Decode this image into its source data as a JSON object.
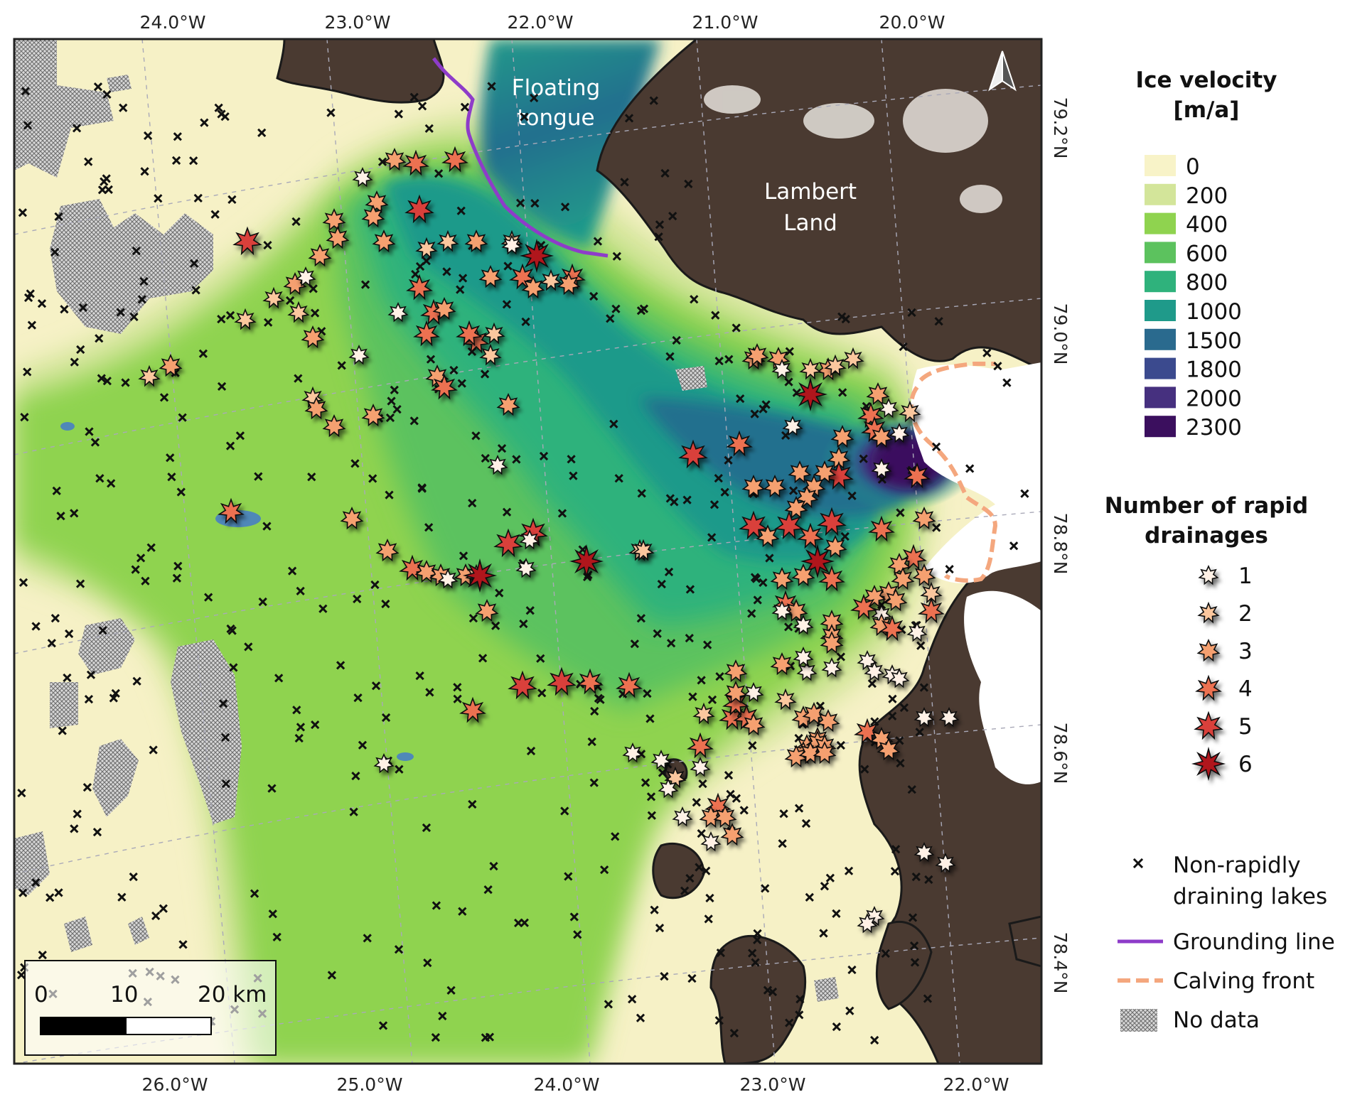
{
  "map": {
    "labels": {
      "floating_tongue": [
        "Floating",
        "tongue"
      ],
      "lambert_land": [
        "Lambert",
        "Land"
      ]
    },
    "top_lon_labels": [
      "24.0°W",
      "23.0°W",
      "22.0°W",
      "21.0°W",
      "20.0°W"
    ],
    "bottom_lon_labels": [
      "26.0°W",
      "25.0°W",
      "24.0°W",
      "23.0°W",
      "22.0°W"
    ],
    "right_lat_labels": [
      "79.2°N",
      "79.0°N",
      "78.8°N",
      "78.6°N",
      "78.4°N"
    ],
    "north_arrow_icon": "north-arrow-icon"
  },
  "scale_bar": {
    "labels": [
      "0",
      "10",
      "20 km"
    ]
  },
  "legend": {
    "velocity_title": [
      "Ice velocity",
      "[m/a]"
    ],
    "velocity_classes": [
      {
        "value": "0",
        "color": "#f8f3c8"
      },
      {
        "value": "200",
        "color": "#d3e59a"
      },
      {
        "value": "400",
        "color": "#8fd34f"
      },
      {
        "value": "600",
        "color": "#5cc25e"
      },
      {
        "value": "800",
        "color": "#2fb27c"
      },
      {
        "value": "1000",
        "color": "#1f9a8a"
      },
      {
        "value": "1500",
        "color": "#2a6a8e"
      },
      {
        "value": "1800",
        "color": "#3b4a8e"
      },
      {
        "value": "2000",
        "color": "#46307f"
      },
      {
        "value": "2300",
        "color": "#3b0f5e"
      }
    ],
    "drainage_title": [
      "Number of rapid",
      "drainages"
    ],
    "drainage_classes": [
      {
        "value": "1",
        "color": "#fff1e6"
      },
      {
        "value": "2",
        "color": "#fbc79e"
      },
      {
        "value": "3",
        "color": "#f5a070"
      },
      {
        "value": "4",
        "color": "#ec7151"
      },
      {
        "value": "5",
        "color": "#d9413a"
      },
      {
        "value": "6",
        "color": "#b0121b"
      }
    ],
    "non_rapid_label": [
      "Non-rapidly",
      "draining lakes"
    ],
    "grounding_line_label": "Grounding line",
    "grounding_line_color": "#8e3cc9",
    "calving_front_label": "Calving front",
    "calving_front_color": "#f4a77e",
    "no_data_label": "No data"
  }
}
